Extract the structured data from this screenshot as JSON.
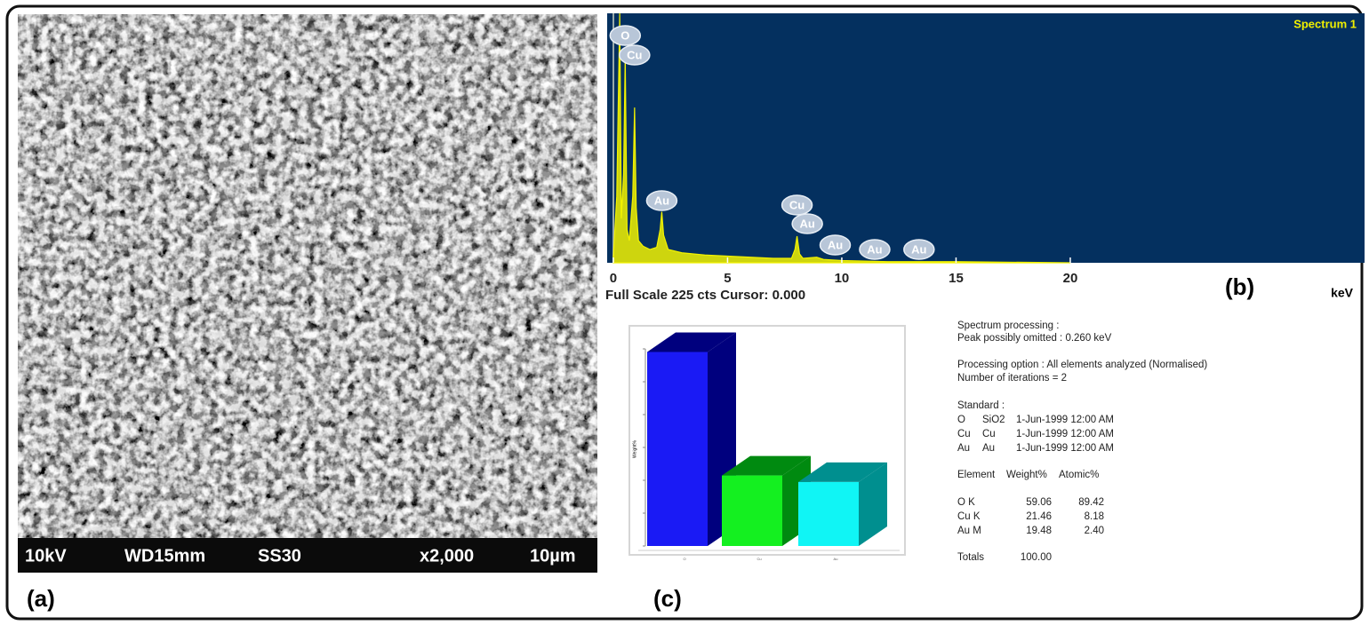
{
  "panels": {
    "a": "(a)",
    "b": "(b)",
    "c": "(c)"
  },
  "sem": {
    "info": [
      "10kV",
      "WD15mm",
      "SS30",
      "x2,000",
      "10µm"
    ]
  },
  "spectrum": {
    "title": "Spectrum 1",
    "xlabel": "keV",
    "footer": "Full Scale 225 cts Cursor: 0.000",
    "xlim": [
      -0.27,
      32.88
    ],
    "ylim": [
      0,
      225
    ],
    "xticks": [
      0,
      5,
      10,
      15,
      20
    ],
    "color": "#f2f200",
    "x": [
      0,
      0.15,
      0.28,
      0.35,
      0.45,
      0.52,
      0.6,
      0.7,
      0.85,
      0.93,
      1.0,
      1.1,
      1.3,
      1.6,
      1.9,
      2.05,
      2.12,
      2.2,
      2.4,
      3,
      4,
      5,
      6,
      7,
      7.8,
      7.95,
      8.04,
      8.15,
      8.3,
      8.9,
      9.2,
      10,
      12,
      15,
      20
    ],
    "counts": [
      5,
      60,
      225,
      40,
      80,
      185,
      30,
      20,
      60,
      140,
      50,
      20,
      15,
      12,
      14,
      30,
      46,
      25,
      12,
      9,
      7,
      6,
      5,
      4,
      4,
      12,
      24,
      8,
      4,
      5,
      3,
      2,
      1,
      1,
      0
    ],
    "peaks": [
      {
        "label": "O",
        "x": 0.52
      },
      {
        "label": "Cu",
        "x": 0.93
      },
      {
        "label": "Au",
        "x": 2.12
      },
      {
        "label": "Cu",
        "x": 8.04
      },
      {
        "label": "Au",
        "x": 8.49
      },
      {
        "label": "Au",
        "x": 9.71
      },
      {
        "label": "Au",
        "x": 11.44
      },
      {
        "label": "Au",
        "x": 13.38
      }
    ]
  },
  "chart_data": {
    "type": "bar3d",
    "ylabel": "Weight%",
    "categories": [
      "O",
      "Cu",
      "Au"
    ],
    "values": [
      59.06,
      21.46,
      19.48
    ],
    "colors": [
      "#1a1af5",
      "#14f020",
      "#10f5f5"
    ],
    "side_colors": [
      "#00007e",
      "#008a10",
      "#008f8f"
    ],
    "ylim": [
      0,
      60
    ],
    "yticks": [
      0,
      10,
      20,
      30,
      40,
      50,
      60
    ]
  },
  "report": {
    "blocks": [
      [
        "Spectrum processing :",
        "Peak possibly omitted : 0.260 keV"
      ],
      [
        "Processing option : All elements analyzed (Normalised)",
        "Number of iterations = 2"
      ]
    ],
    "standard_title": "Standard :",
    "standards": [
      [
        "O",
        "SiO2",
        "1-Jun-1999 12:00 AM"
      ],
      [
        "Cu",
        "Cu",
        "1-Jun-1999 12:00 AM"
      ],
      [
        "Au",
        "Au",
        "1-Jun-1999 12:00 AM"
      ]
    ],
    "header": [
      "Element",
      "Weight%",
      "Atomic%"
    ],
    "rows": [
      [
        "O K",
        "59.06",
        "89.42"
      ],
      [
        "Cu K",
        "21.46",
        "8.18"
      ],
      [
        "Au M",
        "19.48",
        "2.40"
      ]
    ],
    "totals": [
      "Totals",
      "100.00"
    ]
  }
}
